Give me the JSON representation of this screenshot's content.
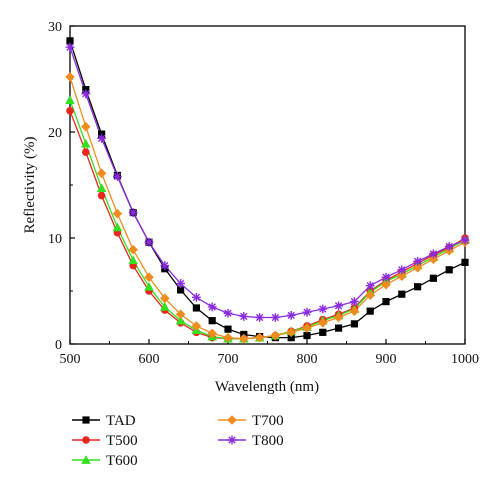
{
  "chart_data": {
    "type": "line",
    "xlabel": "Wavelength (nm)",
    "ylabel": "Reflectivity (%)",
    "xlim": [
      500,
      1000
    ],
    "ylim": [
      0,
      30
    ],
    "xticks": [
      500,
      600,
      700,
      800,
      900,
      1000
    ],
    "yticks": [
      0,
      10,
      20,
      30
    ],
    "grid": false,
    "legend_position": "bottom-left",
    "x": [
      500,
      520,
      540,
      560,
      580,
      600,
      620,
      640,
      660,
      680,
      700,
      720,
      740,
      760,
      780,
      800,
      820,
      840,
      860,
      880,
      900,
      920,
      940,
      960,
      980,
      1000
    ],
    "series": [
      {
        "name": "TAD",
        "color": "#000000",
        "marker": "square",
        "values": [
          28.6,
          24.0,
          19.8,
          15.9,
          12.4,
          9.6,
          7.1,
          5.1,
          3.4,
          2.2,
          1.4,
          0.9,
          0.7,
          0.6,
          0.6,
          0.8,
          1.1,
          1.5,
          1.9,
          3.1,
          4.0,
          4.7,
          5.4,
          6.2,
          7.0,
          7.7
        ]
      },
      {
        "name": "T500",
        "color": "#e8261f",
        "marker": "circle",
        "values": [
          22.0,
          18.1,
          14.0,
          10.5,
          7.4,
          5.0,
          3.2,
          2.0,
          1.1,
          0.6,
          0.5,
          0.5,
          0.6,
          0.8,
          1.2,
          1.7,
          2.3,
          2.8,
          3.4,
          5.0,
          6.0,
          6.8,
          7.6,
          8.4,
          9.1,
          10.0
        ]
      },
      {
        "name": "T600",
        "color": "#33e01f",
        "marker": "triangle",
        "values": [
          23.0,
          18.9,
          14.7,
          11.0,
          7.9,
          5.4,
          3.5,
          2.2,
          1.3,
          0.7,
          0.5,
          0.5,
          0.6,
          0.8,
          1.2,
          1.6,
          2.2,
          2.7,
          3.3,
          4.9,
          5.9,
          6.6,
          7.4,
          8.2,
          9.0,
          9.8
        ]
      },
      {
        "name": "T700",
        "color": "#f08c1e",
        "marker": "diamond",
        "values": [
          25.2,
          20.5,
          16.1,
          12.3,
          8.9,
          6.3,
          4.3,
          2.8,
          1.7,
          1.0,
          0.6,
          0.5,
          0.6,
          0.8,
          1.1,
          1.5,
          2.0,
          2.5,
          3.1,
          4.6,
          5.6,
          6.4,
          7.2,
          8.0,
          8.8,
          9.6
        ]
      },
      {
        "name": "T800",
        "color": "#8a2be2",
        "marker": "star",
        "values": [
          28.0,
          23.6,
          19.4,
          15.8,
          12.4,
          9.6,
          7.4,
          5.7,
          4.4,
          3.5,
          2.9,
          2.6,
          2.5,
          2.5,
          2.7,
          3.0,
          3.3,
          3.6,
          4.0,
          5.5,
          6.3,
          7.0,
          7.8,
          8.5,
          9.2,
          9.8
        ]
      }
    ]
  }
}
